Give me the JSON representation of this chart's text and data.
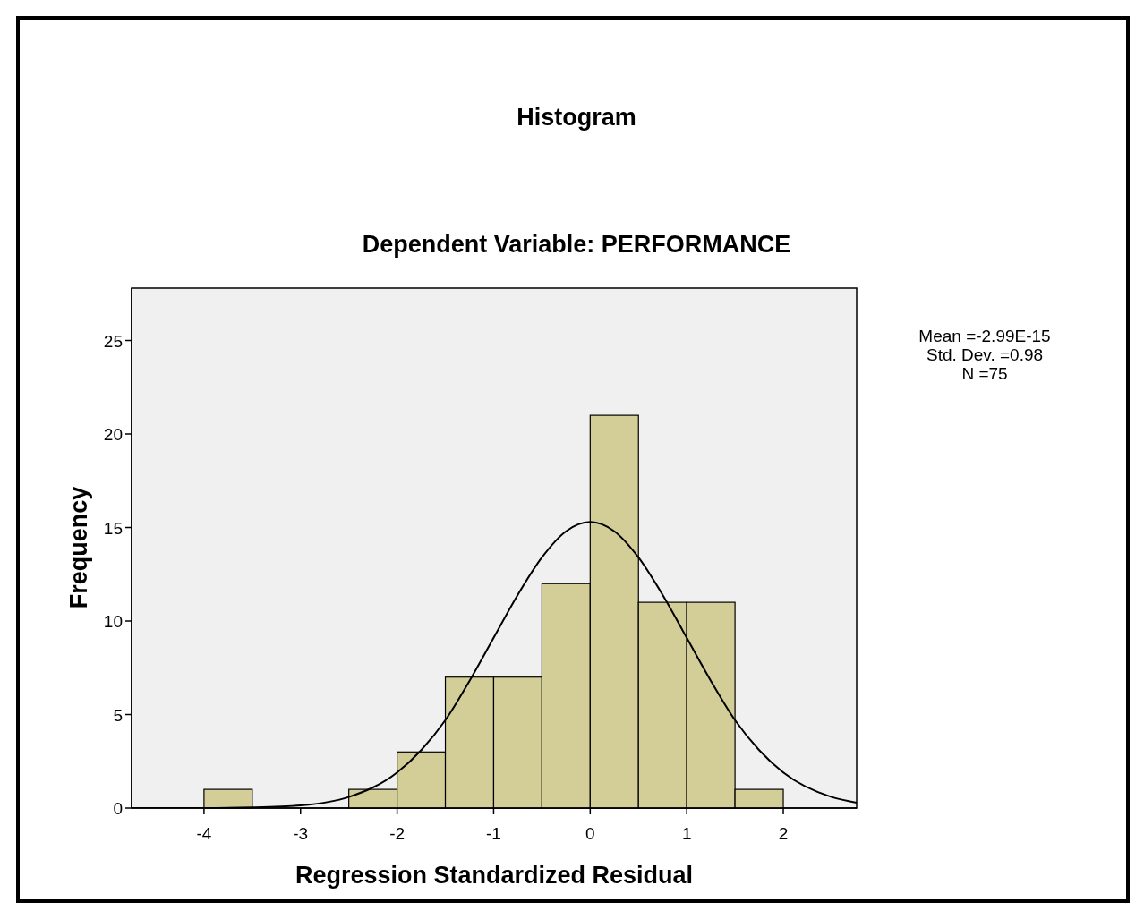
{
  "chart_data": {
    "type": "histogram",
    "title": "Histogram",
    "subtitle": "Dependent Variable: PERFORMANCE",
    "xlabel": "Regression Standardized Residual",
    "ylabel": "Frequency",
    "bins": [
      -4,
      -3.5,
      -3,
      -2.5,
      -2,
      -1.5,
      -1,
      -0.5,
      0,
      0.5,
      1,
      1.5,
      2
    ],
    "values": [
      1,
      0,
      0,
      1,
      3,
      7,
      7,
      12,
      21,
      11,
      11,
      1
    ],
    "color": "#d3ce97",
    "series": [
      {
        "type": "line",
        "color": "#000000",
        "x": [
          -4.75,
          -4,
          -3.5,
          -3,
          -2.5,
          -2,
          -1.75,
          -1.5,
          -1.25,
          -1,
          -0.75,
          -0.5,
          -0.25,
          0,
          0.25,
          0.5,
          0.75,
          1,
          1.25,
          1.5,
          1.75,
          2,
          2.5,
          2.76
        ],
        "values": [
          0,
          0,
          0.03,
          0.14,
          0.59,
          1.9,
          3.1,
          4.7,
          6.8,
          9.1,
          11.4,
          13.4,
          14.8,
          15.3,
          14.8,
          13.4,
          11.4,
          9.1,
          6.8,
          4.7,
          3.1,
          1.9,
          0.59,
          0.29
        ]
      }
    ],
    "xlim": [
      -4.75,
      2.76
    ],
    "ylim": [
      0,
      27.8
    ],
    "xticks": [
      -4,
      -3,
      -2,
      -1,
      0,
      1,
      2
    ],
    "yticks": [
      0,
      5,
      10,
      15,
      20,
      25
    ],
    "grid": false,
    "marker": "none",
    "line_style": "solid",
    "annotations": [
      "Mean =-2.99E-15",
      "Std. Dev. =0.98",
      "N =75"
    ]
  }
}
